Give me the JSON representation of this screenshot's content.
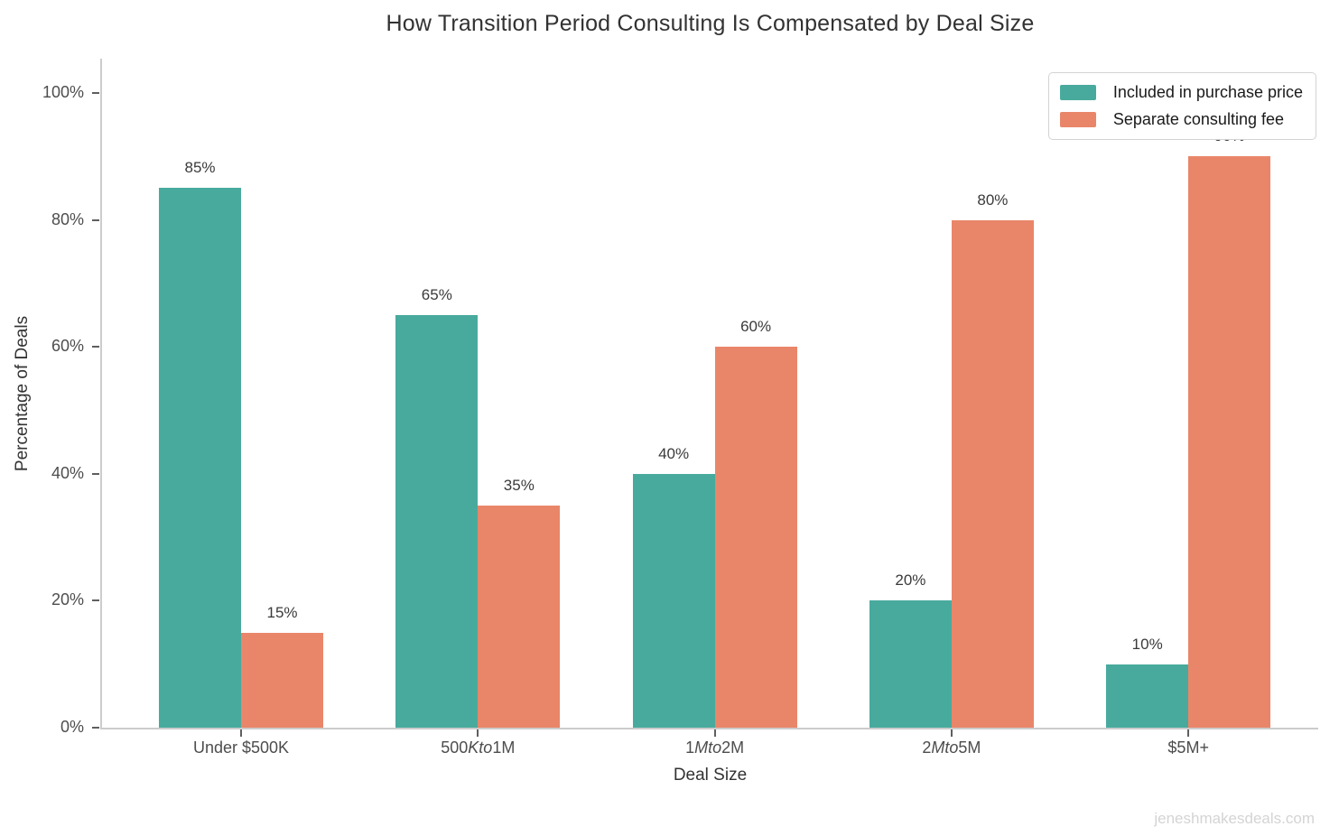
{
  "figure": {
    "watermark": "jeneshmakesdeals.com"
  },
  "style": {
    "teal": "#48aa9d",
    "salmon": "#e98669",
    "spine": "#cccccc",
    "tick": "#5f5f5f",
    "tick_label": "#4d4d4d",
    "value_label": "#3a3a3a",
    "watermark": "#d4d4d4",
    "background": "#ffffff"
  },
  "chart_data": {
    "type": "bar",
    "title": "How Transition Period Consulting Is Compensated by Deal Size",
    "xlabel": "Deal Size",
    "ylabel": "Percentage of Deals",
    "ylim": [
      0,
      105
    ],
    "grid": false,
    "legend_position": "upper right",
    "yticks": [
      {
        "value": 0,
        "label": "0%"
      },
      {
        "value": 20,
        "label": "20%"
      },
      {
        "value": 40,
        "label": "40%"
      },
      {
        "value": 60,
        "label": "60%"
      },
      {
        "value": 80,
        "label": "80%"
      },
      {
        "value": 100,
        "label": "100%"
      }
    ],
    "categories": [
      "Under $500K",
      "500Kto1M",
      "1Mto2M",
      "2Mto5M",
      "$5M+"
    ],
    "category_label_parts": [
      [
        {
          "text": "Under $500K",
          "italic": false
        }
      ],
      [
        {
          "text": "500",
          "italic": false
        },
        {
          "text": "Kto",
          "italic": true
        },
        {
          "text": "1M",
          "italic": false
        }
      ],
      [
        {
          "text": "1",
          "italic": false
        },
        {
          "text": "Mto",
          "italic": true
        },
        {
          "text": "2M",
          "italic": false
        }
      ],
      [
        {
          "text": "2",
          "italic": false
        },
        {
          "text": "Mto",
          "italic": true
        },
        {
          "text": "5M",
          "italic": false
        }
      ],
      [
        {
          "text": "$5M+",
          "italic": false
        }
      ]
    ],
    "series": [
      {
        "name": "Included in purchase price",
        "color": "#48aa9d",
        "values": [
          85,
          65,
          40,
          20,
          10
        ]
      },
      {
        "name": "Separate consulting fee",
        "color": "#e98669",
        "values": [
          15,
          35,
          60,
          80,
          90
        ]
      }
    ],
    "value_label_format": "{v}%"
  }
}
